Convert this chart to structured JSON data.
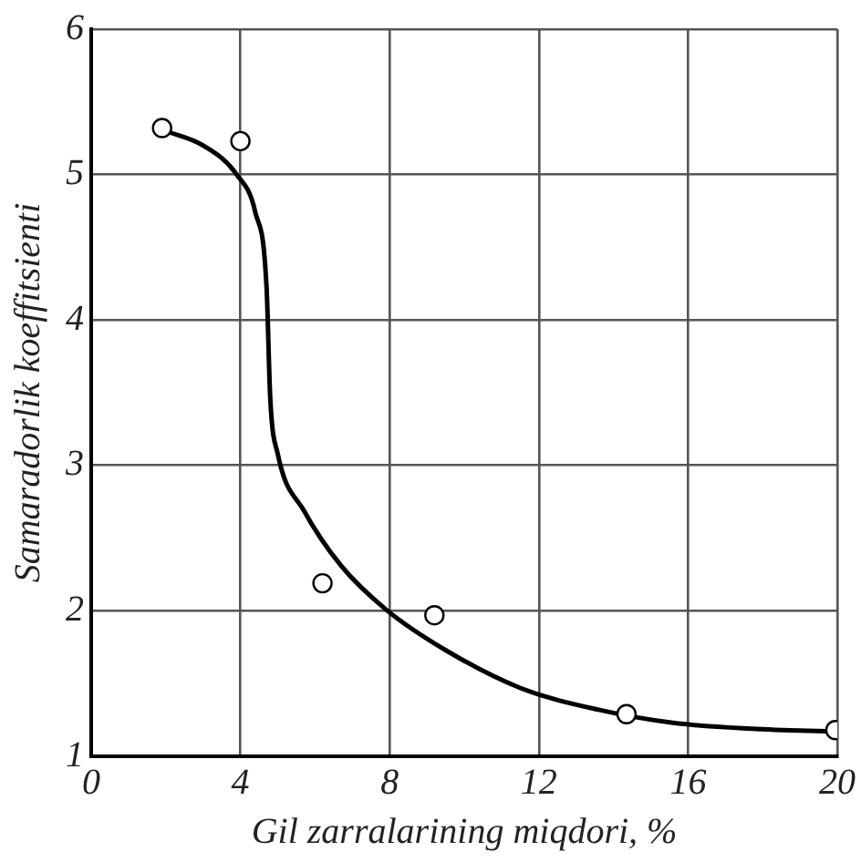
{
  "chart_data": {
    "type": "scatter",
    "xlabel": "Gil zarralarining miqdori, %",
    "ylabel": "Samaradorlik koeffitsienti",
    "xlim": [
      0,
      20
    ],
    "xticks": [
      0,
      4,
      8,
      12,
      16,
      20
    ],
    "ylim": [
      1,
      6
    ],
    "yticks": [
      1,
      2,
      3,
      4,
      5,
      6
    ],
    "grid": true,
    "marker": "circle",
    "series": [
      {
        "color": "#000000",
        "x": [
          1.9,
          4.0,
          6.2,
          9.2,
          14.35,
          19.95
        ],
        "values": [
          5.32,
          5.23,
          2.19,
          1.97,
          1.29,
          1.18
        ]
      },
      {
        "type": "line",
        "color": "#000000",
        "marker": "none",
        "x": [
          2.0,
          3.0,
          3.9,
          4.4,
          4.7,
          4.8,
          5.0,
          5.7,
          6.7,
          7.9,
          9.5,
          11.5,
          13.6,
          15.6,
          17.7,
          20.0
        ],
        "values": [
          5.3,
          5.2,
          5.0,
          4.74,
          4.23,
          3.46,
          3.08,
          2.69,
          2.31,
          2.01,
          1.73,
          1.47,
          1.32,
          1.23,
          1.19,
          1.17
        ]
      }
    ]
  }
}
